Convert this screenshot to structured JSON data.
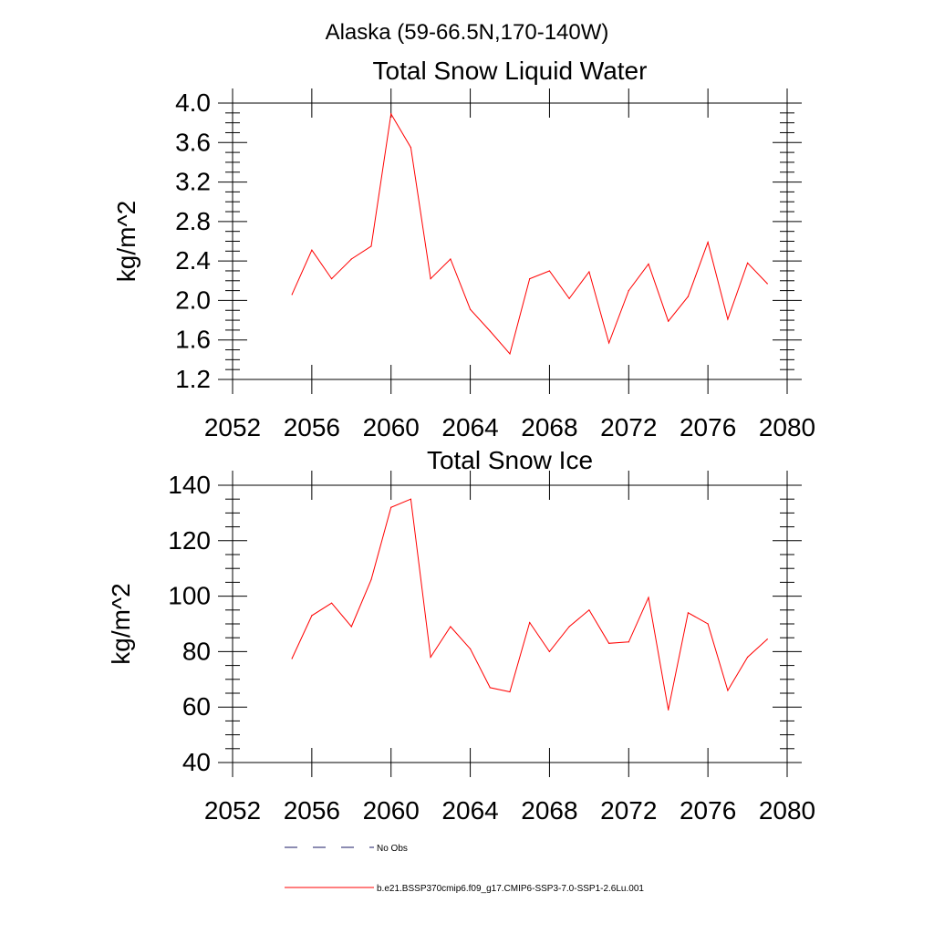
{
  "figure": {
    "title": "Alaska (59-66.5N,170-140W)"
  },
  "legend": {
    "items": [
      {
        "label": "No Obs",
        "style": "dashed",
        "color": "#1a1a66"
      },
      {
        "label": "b.e21.BSSP370cmip6.f09_g17.CMIP6-SSP3-7.0-SSP1-2.6Lu.001",
        "style": "solid",
        "color": "#ff0000"
      }
    ]
  },
  "chart_data": [
    {
      "type": "line",
      "title": "Total Snow Liquid Water",
      "xlabel": "",
      "ylabel": "kg/m^2",
      "xlim": [
        2052,
        2080
      ],
      "ylim": [
        1.2,
        4.0
      ],
      "xticks": [
        2052,
        2056,
        2060,
        2064,
        2068,
        2072,
        2076,
        2080
      ],
      "yticks": [
        "1.2",
        "1.6",
        "2.0",
        "2.4",
        "2.8",
        "3.2",
        "3.6",
        "4.0"
      ],
      "grid": false,
      "series": [
        {
          "color": "#ff0000",
          "x": [
            2055,
            2056,
            2057,
            2058,
            2059,
            2060,
            2061,
            2062,
            2063,
            2064,
            2065,
            2066,
            2067,
            2068,
            2069,
            2070,
            2071,
            2072,
            2073,
            2074,
            2075,
            2076,
            2077,
            2078,
            2079
          ],
          "y": [
            2.06,
            2.51,
            2.22,
            2.42,
            2.55,
            3.89,
            3.55,
            2.22,
            2.42,
            1.91,
            1.69,
            1.46,
            2.22,
            2.3,
            2.02,
            2.29,
            1.57,
            2.1,
            2.37,
            1.79,
            2.04,
            2.59,
            1.81,
            2.38,
            2.17
          ]
        }
      ]
    },
    {
      "type": "line",
      "title": "Total Snow Ice",
      "xlabel": "",
      "ylabel": "kg/m^2",
      "xlim": [
        2052,
        2080
      ],
      "ylim": [
        40,
        140
      ],
      "xticks": [
        2052,
        2056,
        2060,
        2064,
        2068,
        2072,
        2076,
        2080
      ],
      "yticks": [
        "40",
        "60",
        "80",
        "100",
        "120",
        "140"
      ],
      "grid": false,
      "series": [
        {
          "color": "#ff0000",
          "x": [
            2055,
            2056,
            2057,
            2058,
            2059,
            2060,
            2061,
            2062,
            2063,
            2064,
            2065,
            2066,
            2067,
            2068,
            2069,
            2070,
            2071,
            2072,
            2073,
            2074,
            2075,
            2076,
            2077,
            2078,
            2079
          ],
          "y": [
            77.5,
            93.0,
            97.5,
            89.0,
            106.0,
            132.0,
            135.0,
            78.0,
            89.0,
            81.0,
            67.0,
            65.5,
            90.5,
            80.0,
            89.0,
            95.0,
            83.0,
            83.5,
            99.5,
            59.0,
            94.0,
            90.0,
            66.0,
            78.0,
            84.5
          ]
        }
      ]
    }
  ]
}
